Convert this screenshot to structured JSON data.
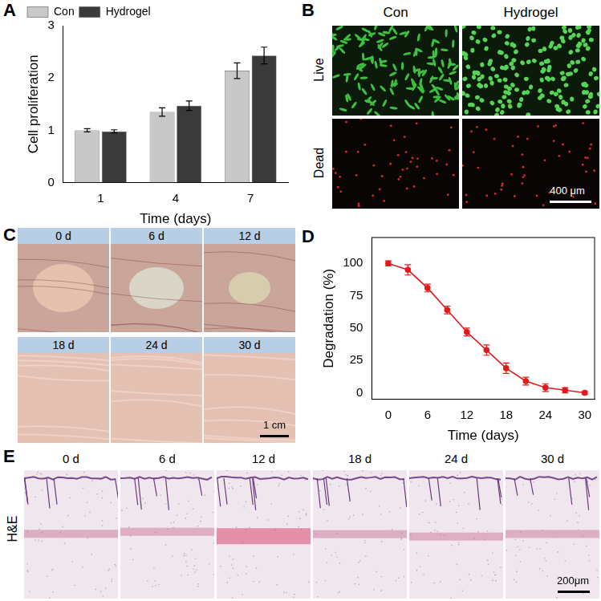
{
  "panel_labels": [
    "A",
    "B",
    "C",
    "D",
    "E"
  ],
  "chart_data": [
    {
      "type": "bar",
      "categories": [
        "1",
        "4",
        "7"
      ],
      "x_label": "Time (days)",
      "y_label": "Cell proliferation",
      "series": [
        {
          "name": "Con",
          "color": "#c8c8c8",
          "values": [
            1.0,
            1.35,
            2.14
          ],
          "errors": [
            0.03,
            0.08,
            0.15
          ]
        },
        {
          "name": "Hydrogel",
          "color": "#3a3a3a",
          "values": [
            0.98,
            1.47,
            2.43
          ],
          "errors": [
            0.03,
            0.09,
            0.16
          ]
        }
      ],
      "ylim": [
        0,
        3
      ],
      "yticks": [
        0,
        1,
        2,
        3
      ],
      "legend": "upper left",
      "grid": false
    },
    {
      "type": "line",
      "x": [
        0,
        3,
        6,
        9,
        12,
        15,
        18,
        21,
        24,
        27,
        30
      ],
      "values": [
        100,
        95,
        81,
        64,
        47,
        33,
        19,
        9,
        4,
        2,
        0
      ],
      "errors": [
        2,
        4,
        3,
        3,
        3,
        4,
        4,
        3,
        3,
        2,
        1
      ],
      "color": "#e31a1c",
      "marker": "circle",
      "x_label": "Time (days)",
      "y_label": "Degradation (%)",
      "xlim": [
        -2.5,
        31.5
      ],
      "xticks": [
        0,
        6,
        12,
        18,
        24,
        30
      ],
      "ylim": [
        -5,
        120
      ],
      "yticks": [
        0,
        25,
        50,
        75,
        100
      ],
      "grid": false
    }
  ],
  "live_dead": {
    "columns": [
      "Con",
      "Hydrogel"
    ],
    "rows": [
      "Live",
      "Dead"
    ],
    "scale_bar": "400 μm"
  },
  "implant_photos": {
    "times": [
      "0 d",
      "6 d",
      "12 d",
      "18 d",
      "24 d",
      "30 d"
    ],
    "scale_bar": "1 cm"
  },
  "histology": {
    "stain": "H&E",
    "times": [
      "0 d",
      "6 d",
      "12 d",
      "18 d",
      "24 d",
      "30 d"
    ],
    "scale_bar": "200μm"
  }
}
